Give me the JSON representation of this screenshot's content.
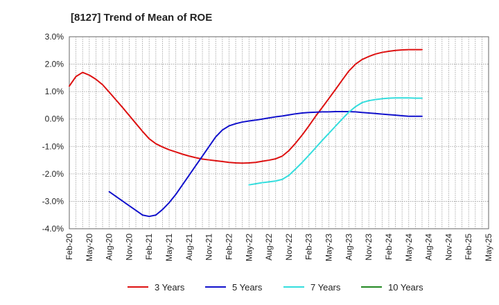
{
  "chart_data": {
    "type": "line",
    "title": "[8127]  Trend of Mean of ROE",
    "xlabel": "",
    "ylabel": "",
    "x_ticks": [
      "Feb-20",
      "May-20",
      "Aug-20",
      "Nov-20",
      "Feb-21",
      "May-21",
      "Aug-21",
      "Nov-21",
      "Feb-22",
      "May-22",
      "Aug-22",
      "Nov-22",
      "Feb-23",
      "May-23",
      "Aug-23",
      "Nov-23",
      "Feb-24",
      "May-24",
      "Aug-24",
      "Nov-24",
      "Feb-25",
      "May-25"
    ],
    "y_ticks": [
      "3.0%",
      "2.0%",
      "1.0%",
      "0.0%",
      "-1.0%",
      "-2.0%",
      "-3.0%",
      "-4.0%"
    ],
    "ylim": [
      -4.0,
      3.0
    ],
    "grid": true,
    "legend_position": "bottom",
    "series": [
      {
        "name": "3 Years",
        "color": "#dd1111",
        "points": [
          [
            0,
            1.2
          ],
          [
            1,
            1.55
          ],
          [
            2,
            1.7
          ],
          [
            3,
            1.6
          ],
          [
            4,
            1.45
          ],
          [
            5,
            1.25
          ],
          [
            6,
            0.98
          ],
          [
            7,
            0.7
          ],
          [
            8,
            0.42
          ],
          [
            9,
            0.13
          ],
          [
            10,
            -0.16
          ],
          [
            11,
            -0.45
          ],
          [
            12,
            -0.72
          ],
          [
            13,
            -0.9
          ],
          [
            14,
            -1.02
          ],
          [
            15,
            -1.12
          ],
          [
            16,
            -1.2
          ],
          [
            17,
            -1.28
          ],
          [
            18,
            -1.35
          ],
          [
            19,
            -1.41
          ],
          [
            20,
            -1.46
          ],
          [
            21,
            -1.49
          ],
          [
            22,
            -1.52
          ],
          [
            23,
            -1.55
          ],
          [
            24,
            -1.58
          ],
          [
            25,
            -1.6
          ],
          [
            26,
            -1.61
          ],
          [
            27,
            -1.6
          ],
          [
            28,
            -1.58
          ],
          [
            29,
            -1.54
          ],
          [
            30,
            -1.5
          ],
          [
            31,
            -1.45
          ],
          [
            32,
            -1.35
          ],
          [
            33,
            -1.15
          ],
          [
            34,
            -0.88
          ],
          [
            35,
            -0.58
          ],
          [
            36,
            -0.25
          ],
          [
            37,
            0.1
          ],
          [
            38,
            0.42
          ],
          [
            39,
            0.75
          ],
          [
            40,
            1.08
          ],
          [
            41,
            1.42
          ],
          [
            42,
            1.75
          ],
          [
            43,
            2.0
          ],
          [
            44,
            2.17
          ],
          [
            45,
            2.28
          ],
          [
            46,
            2.37
          ],
          [
            47,
            2.43
          ],
          [
            48,
            2.47
          ],
          [
            49,
            2.5
          ],
          [
            50,
            2.52
          ],
          [
            51,
            2.53
          ],
          [
            52,
            2.53
          ],
          [
            53,
            2.53
          ]
        ]
      },
      {
        "name": "5 Years",
        "color": "#1111cc",
        "points": [
          [
            6,
            -2.65
          ],
          [
            7,
            -2.82
          ],
          [
            8,
            -2.99
          ],
          [
            9,
            -3.16
          ],
          [
            10,
            -3.33
          ],
          [
            11,
            -3.5
          ],
          [
            12,
            -3.55
          ],
          [
            13,
            -3.5
          ],
          [
            14,
            -3.3
          ],
          [
            15,
            -3.05
          ],
          [
            16,
            -2.75
          ],
          [
            17,
            -2.4
          ],
          [
            18,
            -2.05
          ],
          [
            19,
            -1.7
          ],
          [
            20,
            -1.35
          ],
          [
            21,
            -1.0
          ],
          [
            22,
            -0.65
          ],
          [
            23,
            -0.4
          ],
          [
            24,
            -0.25
          ],
          [
            25,
            -0.17
          ],
          [
            26,
            -0.11
          ],
          [
            27,
            -0.07
          ],
          [
            28,
            -0.04
          ],
          [
            29,
            0.0
          ],
          [
            30,
            0.04
          ],
          [
            31,
            0.08
          ],
          [
            32,
            0.11
          ],
          [
            33,
            0.15
          ],
          [
            34,
            0.19
          ],
          [
            35,
            0.22
          ],
          [
            36,
            0.24
          ],
          [
            37,
            0.25
          ],
          [
            38,
            0.26
          ],
          [
            39,
            0.26
          ],
          [
            40,
            0.27
          ],
          [
            41,
            0.27
          ],
          [
            42,
            0.27
          ],
          [
            43,
            0.26
          ],
          [
            44,
            0.24
          ],
          [
            45,
            0.22
          ],
          [
            46,
            0.2
          ],
          [
            47,
            0.18
          ],
          [
            48,
            0.16
          ],
          [
            49,
            0.14
          ],
          [
            50,
            0.12
          ],
          [
            51,
            0.1
          ],
          [
            52,
            0.1
          ],
          [
            53,
            0.1
          ]
        ]
      },
      {
        "name": "7 Years",
        "color": "#33dddd",
        "points": [
          [
            27,
            -2.4
          ],
          [
            28,
            -2.36
          ],
          [
            29,
            -2.32
          ],
          [
            30,
            -2.29
          ],
          [
            31,
            -2.26
          ],
          [
            32,
            -2.2
          ],
          [
            33,
            -2.05
          ],
          [
            34,
            -1.82
          ],
          [
            35,
            -1.58
          ],
          [
            36,
            -1.32
          ],
          [
            37,
            -1.05
          ],
          [
            38,
            -0.78
          ],
          [
            39,
            -0.52
          ],
          [
            40,
            -0.26
          ],
          [
            41,
            0.0
          ],
          [
            42,
            0.25
          ],
          [
            43,
            0.45
          ],
          [
            44,
            0.6
          ],
          [
            45,
            0.67
          ],
          [
            46,
            0.71
          ],
          [
            47,
            0.74
          ],
          [
            48,
            0.76
          ],
          [
            49,
            0.77
          ],
          [
            50,
            0.77
          ],
          [
            51,
            0.77
          ],
          [
            52,
            0.76
          ],
          [
            53,
            0.76
          ]
        ]
      },
      {
        "name": "10 Years",
        "color": "#228822",
        "points": []
      }
    ]
  }
}
